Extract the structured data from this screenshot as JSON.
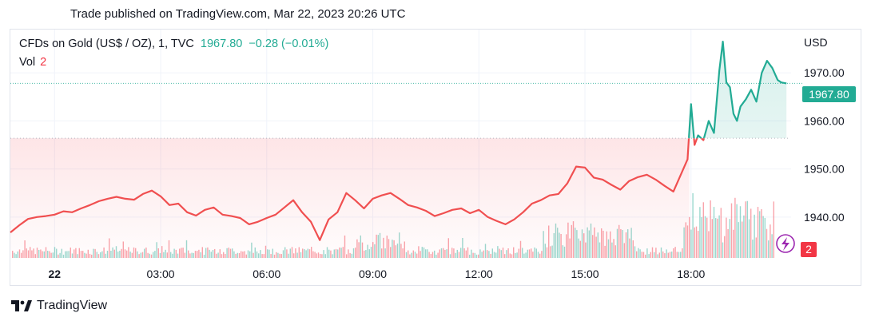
{
  "header": {
    "published": "Trade published on TradingView.com, Mar 22, 2023 20:26 UTC"
  },
  "legend": {
    "symbol": "CFDs on Gold (US$ / OZ), 1, TVC",
    "price": "1967.80",
    "change": "−0.28 (−0.01%)",
    "vol_label": "Vol",
    "vol_value": "2"
  },
  "axis": {
    "currency": "USD",
    "price_tag": "1967.80",
    "vol_tag": "2"
  },
  "footer": {
    "brand": "TradingView"
  },
  "colors": {
    "up": "#22ab94",
    "down": "#f23645",
    "line_red": "#f04f50"
  },
  "chart_data": {
    "type": "line",
    "ylim": [
      1931.5,
      1979
    ],
    "xlim": [
      -1.25,
      20.83
    ],
    "x_ticks": [
      {
        "label": "22",
        "x": 0
      },
      {
        "label": "03:00",
        "x": 3
      },
      {
        "label": "06:00",
        "x": 6
      },
      {
        "label": "09:00",
        "x": 9
      },
      {
        "label": "12:00",
        "x": 12
      },
      {
        "label": "15:00",
        "x": 15
      },
      {
        "label": "18:00",
        "x": 18
      }
    ],
    "y_ticks": [
      1940,
      1950,
      1960,
      1970
    ],
    "reference_price": 1956.4,
    "last_price": 1967.8,
    "series": [
      {
        "points": [
          [
            -1.25,
            1936.8
          ],
          [
            -1.0,
            1938.3
          ],
          [
            -0.75,
            1939.6
          ],
          [
            -0.5,
            1940.0
          ],
          [
            -0.25,
            1940.2
          ],
          [
            0.0,
            1940.5
          ],
          [
            0.25,
            1941.2
          ],
          [
            0.5,
            1941.0
          ],
          [
            0.75,
            1941.8
          ],
          [
            1.0,
            1942.5
          ],
          [
            1.25,
            1943.3
          ],
          [
            1.5,
            1943.8
          ],
          [
            1.75,
            1944.2
          ],
          [
            2.0,
            1943.8
          ],
          [
            2.25,
            1943.6
          ],
          [
            2.5,
            1944.8
          ],
          [
            2.75,
            1945.5
          ],
          [
            3.0,
            1944.3
          ],
          [
            3.25,
            1942.5
          ],
          [
            3.5,
            1942.8
          ],
          [
            3.75,
            1941.0
          ],
          [
            4.0,
            1940.3
          ],
          [
            4.25,
            1941.5
          ],
          [
            4.5,
            1942.0
          ],
          [
            4.75,
            1940.5
          ],
          [
            5.0,
            1940.2
          ],
          [
            5.25,
            1939.8
          ],
          [
            5.5,
            1938.5
          ],
          [
            5.75,
            1939.0
          ],
          [
            6.0,
            1939.8
          ],
          [
            6.25,
            1940.5
          ],
          [
            6.5,
            1942.0
          ],
          [
            6.75,
            1943.5
          ],
          [
            7.0,
            1941.0
          ],
          [
            7.25,
            1939.0
          ],
          [
            7.5,
            1935.2
          ],
          [
            7.75,
            1939.5
          ],
          [
            8.0,
            1941.0
          ],
          [
            8.25,
            1945.0
          ],
          [
            8.5,
            1943.5
          ],
          [
            8.75,
            1941.8
          ],
          [
            9.0,
            1943.8
          ],
          [
            9.25,
            1944.5
          ],
          [
            9.5,
            1945.0
          ],
          [
            9.75,
            1943.8
          ],
          [
            10.0,
            1942.5
          ],
          [
            10.25,
            1942.0
          ],
          [
            10.5,
            1941.3
          ],
          [
            10.75,
            1940.2
          ],
          [
            11.0,
            1940.8
          ],
          [
            11.25,
            1941.5
          ],
          [
            11.5,
            1941.8
          ],
          [
            11.75,
            1940.8
          ],
          [
            12.0,
            1941.5
          ],
          [
            12.25,
            1940.0
          ],
          [
            12.5,
            1939.2
          ],
          [
            12.75,
            1938.5
          ],
          [
            13.0,
            1939.5
          ],
          [
            13.25,
            1941.0
          ],
          [
            13.5,
            1942.8
          ],
          [
            13.75,
            1943.5
          ],
          [
            14.0,
            1944.5
          ],
          [
            14.25,
            1944.8
          ],
          [
            14.5,
            1947.0
          ],
          [
            14.75,
            1950.5
          ],
          [
            15.0,
            1950.3
          ],
          [
            15.25,
            1948.2
          ],
          [
            15.5,
            1947.8
          ],
          [
            15.75,
            1946.7
          ],
          [
            16.0,
            1945.7
          ],
          [
            16.25,
            1947.5
          ],
          [
            16.5,
            1948.3
          ],
          [
            16.75,
            1948.8
          ],
          [
            17.0,
            1947.8
          ],
          [
            17.25,
            1946.5
          ],
          [
            17.5,
            1945.3
          ],
          [
            17.9,
            1952.0
          ],
          [
            18.0,
            1963.5
          ],
          [
            18.1,
            1955.0
          ],
          [
            18.2,
            1957.0
          ],
          [
            18.35,
            1956.0
          ],
          [
            18.5,
            1960.0
          ],
          [
            18.65,
            1957.5
          ],
          [
            18.8,
            1970.5
          ],
          [
            18.9,
            1976.5
          ],
          [
            19.0,
            1968.0
          ],
          [
            19.1,
            1967.0
          ],
          [
            19.2,
            1961.5
          ],
          [
            19.3,
            1960.0
          ],
          [
            19.4,
            1963.0
          ],
          [
            19.55,
            1964.5
          ],
          [
            19.7,
            1966.5
          ],
          [
            19.85,
            1964.0
          ],
          [
            20.0,
            1970.0
          ],
          [
            20.15,
            1972.5
          ],
          [
            20.3,
            1971.0
          ],
          [
            20.45,
            1968.5
          ],
          [
            20.55,
            1968.0
          ],
          [
            20.7,
            1967.8
          ]
        ]
      }
    ]
  }
}
